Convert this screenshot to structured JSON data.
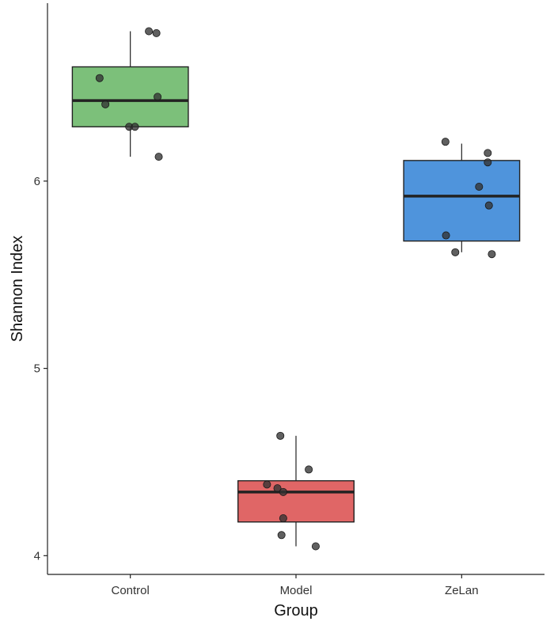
{
  "chart_data": {
    "type": "boxplot",
    "xlabel": "Group",
    "ylabel": "Shannon Index",
    "ylim": [
      3.9,
      6.95
    ],
    "yticks": [
      4,
      5,
      6
    ],
    "grid": false,
    "legend": "none",
    "categories": [
      "Control",
      "Model",
      "ZeLan"
    ],
    "groups": [
      {
        "name": "Control",
        "color": "#7cc07a",
        "q1": 6.29,
        "median": 6.43,
        "q3": 6.61,
        "whisker_low": 6.13,
        "whisker_high": 6.8,
        "points": [
          6.8,
          6.79,
          6.55,
          6.45,
          6.41,
          6.29,
          6.29,
          6.13
        ]
      },
      {
        "name": "Model",
        "color": "#e06666",
        "q1": 4.18,
        "median": 4.34,
        "q3": 4.4,
        "whisker_low": 4.05,
        "whisker_high": 4.64,
        "points": [
          4.64,
          4.46,
          4.38,
          4.36,
          4.34,
          4.2,
          4.11,
          4.05
        ]
      },
      {
        "name": "ZeLan",
        "color": "#4f94dc",
        "q1": 5.68,
        "median": 5.92,
        "q3": 6.11,
        "whisker_low": 5.62,
        "whisker_high": 6.2,
        "points": [
          6.21,
          6.15,
          6.1,
          5.97,
          5.87,
          5.71,
          5.62,
          5.61
        ]
      }
    ]
  }
}
